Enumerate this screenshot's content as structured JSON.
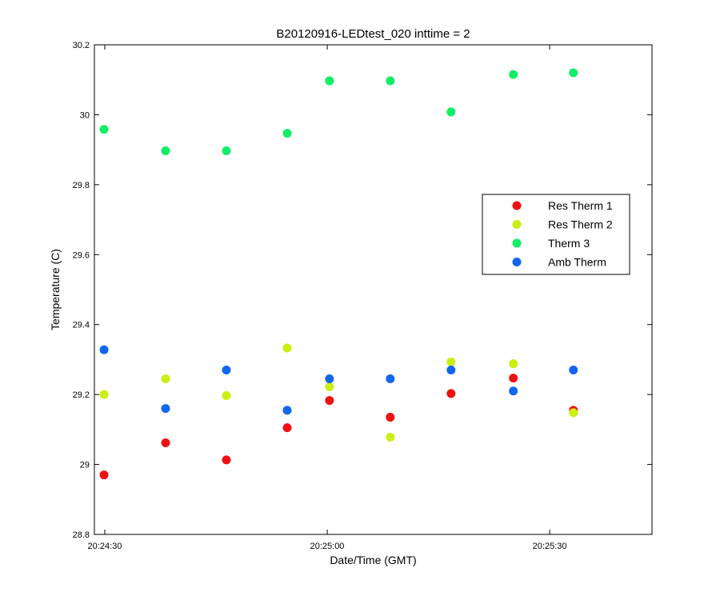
{
  "chart_data": {
    "type": "scatter",
    "title": "B20120916-LEDtest_020 inttime = 2",
    "xlabel": "Date/Time (GMT)",
    "ylabel": "Temperature (C)",
    "x_unit": "time (GMT)",
    "xlim": [
      "20:24:28.6",
      "20:25:43.8"
    ],
    "ylim": [
      28.8,
      30.2
    ],
    "y_ticks": [
      28.8,
      29,
      29.2,
      29.4,
      29.6,
      29.8,
      30,
      30.2
    ],
    "y_tick_labels": [
      "28.8",
      "29",
      "29.2",
      "29.4",
      "29.6",
      "29.8",
      "30",
      "30.2"
    ],
    "x_ticks": [
      "20:24:30",
      "20:25:00",
      "20:25:30"
    ],
    "x": [
      "20:24:29.9",
      "20:24:38.2",
      "20:24:46.4",
      "20:24:54.6",
      "20:25:00.3",
      "20:25:08.5",
      "20:25:16.7",
      "20:25:25.1",
      "20:25:33.2"
    ],
    "grid": false,
    "legend_position": "right, middle-upper",
    "series": [
      {
        "name": "Res Therm 1",
        "color": "#ee1111",
        "values": [
          28.97,
          29.062,
          29.013,
          29.105,
          29.183,
          29.135,
          29.203,
          29.247,
          29.155
        ]
      },
      {
        "name": "Res Therm 2",
        "color": "#ccee11",
        "values": [
          29.2,
          29.245,
          29.197,
          29.333,
          29.222,
          29.078,
          29.293,
          29.288,
          29.148
        ]
      },
      {
        "name": "Therm 3",
        "color": "#11ee66",
        "values": [
          29.958,
          29.897,
          29.897,
          29.947,
          30.097,
          30.097,
          30.008,
          30.115,
          30.12
        ]
      },
      {
        "name": "Amb Therm",
        "color": "#1166ee",
        "values": [
          29.328,
          29.16,
          29.27,
          29.155,
          29.245,
          29.245,
          29.27,
          29.21,
          29.27
        ]
      }
    ]
  }
}
